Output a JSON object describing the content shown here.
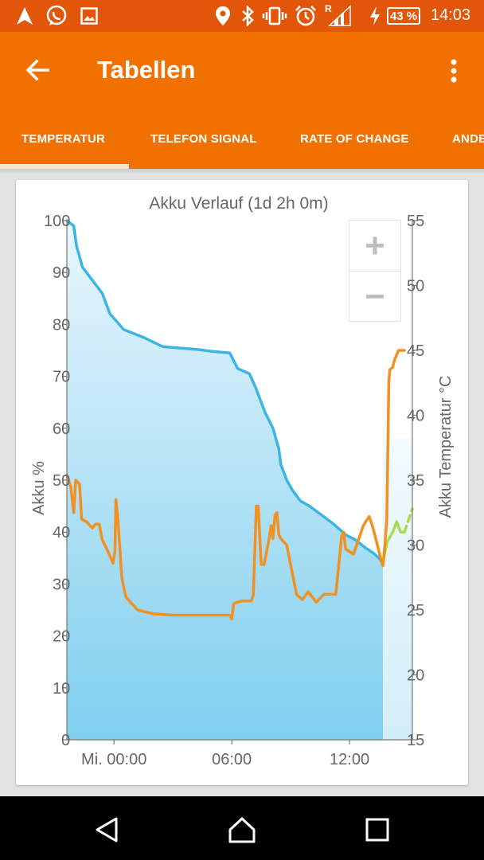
{
  "status_bar": {
    "battery_percent": "43 %",
    "time": "14:03",
    "network_label": "R",
    "icons": [
      "navigation-icon",
      "whatsapp-icon",
      "image-icon",
      "location-icon",
      "bluetooth-icon",
      "vibrate-icon",
      "alarm-icon",
      "signal-icon",
      "charging-icon",
      "battery-icon"
    ]
  },
  "app_bar": {
    "title": "Tabellen",
    "back_icon": "arrow-left-icon",
    "menu_icon": "more-vert-icon"
  },
  "tabs": [
    {
      "label": "TEMPERATUR",
      "selected": true
    },
    {
      "label": "TELEFON SIGNAL",
      "selected": false
    },
    {
      "label": "RATE OF CHANGE",
      "selected": false
    },
    {
      "label": "ANDE",
      "selected": false
    }
  ],
  "chart_data": {
    "type": "line",
    "title": "Akku Verlauf (1d 2h 0m)",
    "ylabel": "Akku %",
    "y2label": "Akku Temperatur °C",
    "ylim": [
      0,
      100
    ],
    "y2lim": [
      15,
      55
    ],
    "yticks": [
      "100",
      "90",
      "80",
      "70",
      "60",
      "50",
      "40",
      "30",
      "20",
      "10",
      "0"
    ],
    "y2ticks": [
      "55",
      "50",
      "45",
      "40",
      "35",
      "30",
      "25",
      "20",
      "15"
    ],
    "xticks": [
      {
        "label": "Mi. 00:00",
        "hour": 0
      },
      {
        "label": "06:00",
        "hour": 6
      },
      {
        "label": "12:00",
        "hour": 12
      }
    ],
    "xlim": [
      -2.4,
      15.2
    ],
    "grid": false,
    "series": [
      {
        "color": "#3db4e6",
        "fill": true,
        "axis": "left",
        "points": [
          [
            -2.4,
            100
          ],
          [
            -2.05,
            99
          ],
          [
            -1.9,
            95
          ],
          [
            -1.6,
            91
          ],
          [
            -1.0,
            88
          ],
          [
            -0.6,
            86
          ],
          [
            -0.2,
            82
          ],
          [
            0.5,
            79
          ],
          [
            1.5,
            77.5
          ],
          [
            2.5,
            75.7
          ],
          [
            3.5,
            75.4
          ],
          [
            4.2,
            75.2
          ],
          [
            5.0,
            74.8
          ],
          [
            5.9,
            74.5
          ],
          [
            6.3,
            71.5
          ],
          [
            6.9,
            70.5
          ],
          [
            7.2,
            68
          ],
          [
            7.4,
            66
          ],
          [
            7.7,
            63
          ],
          [
            8.1,
            60
          ],
          [
            8.4,
            56
          ],
          [
            8.5,
            53
          ],
          [
            8.8,
            50
          ],
          [
            9.1,
            48
          ],
          [
            9.5,
            46
          ],
          [
            10.0,
            44.9
          ],
          [
            10.5,
            43.5
          ],
          [
            11.2,
            41.5
          ],
          [
            11.8,
            39.5
          ],
          [
            12.3,
            38.5
          ],
          [
            12.8,
            37
          ],
          [
            13.2,
            36
          ],
          [
            13.5,
            35
          ],
          [
            13.7,
            34
          ]
        ]
      },
      {
        "color": "#a8dc48",
        "axis": "left",
        "points": [
          [
            13.7,
            34
          ],
          [
            13.9,
            38
          ],
          [
            14.2,
            40
          ],
          [
            14.4,
            42
          ],
          [
            14.6,
            40
          ],
          [
            14.8,
            40
          ]
        ]
      },
      {
        "color": "#a8dc48",
        "dashed": true,
        "axis": "left",
        "points": [
          [
            14.8,
            40
          ],
          [
            15.2,
            44.5
          ]
        ]
      },
      {
        "color": "#f39022",
        "axis": "right",
        "points": [
          [
            -2.4,
            35.4
          ],
          [
            -2.2,
            34.5
          ],
          [
            -2.05,
            32.5
          ],
          [
            -1.95,
            35
          ],
          [
            -1.75,
            34.7
          ],
          [
            -1.65,
            32
          ],
          [
            -1.4,
            31.8
          ],
          [
            -1.1,
            31.3
          ],
          [
            -0.95,
            31.6
          ],
          [
            -0.75,
            31.6
          ],
          [
            -0.6,
            30.4
          ],
          [
            -0.3,
            29.5
          ],
          [
            -0.05,
            28.6
          ],
          [
            0.05,
            29.5
          ],
          [
            0.1,
            33.5
          ],
          [
            0.2,
            32
          ],
          [
            0.4,
            27.5
          ],
          [
            0.6,
            26
          ],
          [
            1.2,
            25
          ],
          [
            2.0,
            24.7
          ],
          [
            3.0,
            24.6
          ],
          [
            4.0,
            24.6
          ],
          [
            5.0,
            24.6
          ],
          [
            5.9,
            24.6
          ],
          [
            6.0,
            24.3
          ],
          [
            6.1,
            25.5
          ],
          [
            6.5,
            25.7
          ],
          [
            7.0,
            25.7
          ],
          [
            7.1,
            26.2
          ],
          [
            7.25,
            33
          ],
          [
            7.35,
            33
          ],
          [
            7.5,
            28.5
          ],
          [
            7.65,
            28.5
          ],
          [
            7.9,
            30.5
          ],
          [
            8.0,
            31.5
          ],
          [
            8.1,
            30.5
          ],
          [
            8.2,
            32.3
          ],
          [
            8.3,
            32.5
          ],
          [
            8.4,
            30.8
          ],
          [
            8.5,
            30.5
          ],
          [
            8.8,
            30
          ],
          [
            9.3,
            26.2
          ],
          [
            9.6,
            25.8
          ],
          [
            9.9,
            26.4
          ],
          [
            10.3,
            25.6
          ],
          [
            10.7,
            26.2
          ],
          [
            11.3,
            26.2
          ],
          [
            11.6,
            30.7
          ],
          [
            11.7,
            31
          ],
          [
            11.8,
            29.7
          ],
          [
            12.2,
            29.3
          ],
          [
            12.7,
            31.5
          ],
          [
            13.0,
            32.2
          ],
          [
            13.2,
            31.3
          ],
          [
            13.5,
            29.5
          ],
          [
            13.6,
            28.9
          ],
          [
            13.7,
            28.4
          ],
          [
            13.8,
            30
          ],
          [
            13.9,
            32
          ],
          [
            14.0,
            42.5
          ],
          [
            14.05,
            43.5
          ],
          [
            14.2,
            43.7
          ],
          [
            14.3,
            44.3
          ],
          [
            14.5,
            45
          ],
          [
            14.8,
            45
          ]
        ]
      }
    ]
  },
  "zoom": {
    "in_label": "+",
    "out_label": "−"
  },
  "nav_bar": {
    "icons": [
      "back-triangle-icon",
      "home-icon",
      "recents-square-icon"
    ]
  }
}
